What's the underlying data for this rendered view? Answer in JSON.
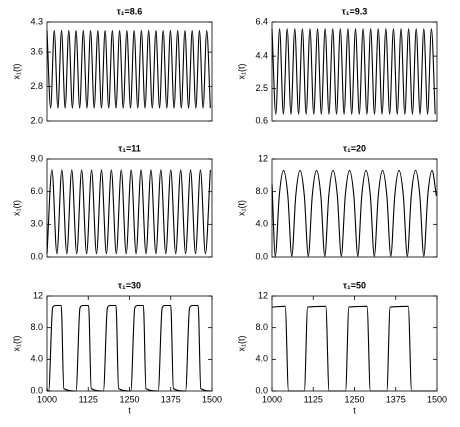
{
  "chart_data": [
    {
      "type": "line",
      "title": "τ₁=8.6",
      "ylabel": "x₁(t)",
      "xlim": [
        1000,
        1500
      ],
      "ylim": [
        2,
        4.3
      ],
      "yticks": [
        {
          "value": 2,
          "label": "2.0"
        },
        3.6,
        2.8,
        4.3
      ],
      "series": [
        {
          "color": "#000000",
          "x": [
            1000,
            1011,
            1022,
            1033,
            1044,
            1055,
            1066,
            1077,
            1088,
            1099,
            1110,
            1121,
            1132,
            1143,
            1154,
            1165,
            1176,
            1187,
            1198,
            1209,
            1220,
            1231,
            1242,
            1253,
            1264,
            1275,
            1286,
            1297,
            1308,
            1319,
            1330,
            1341,
            1352,
            1363,
            1374,
            1385,
            1396,
            1407,
            1418,
            1429,
            1440,
            1451,
            1462,
            1473,
            1484,
            1495
          ],
          "values": [
            4.1,
            2.3,
            4.1,
            2.3,
            4.1,
            2.3,
            4.1,
            2.3,
            4.1,
            2.3,
            4.1,
            2.3,
            4.1,
            2.3,
            4.1,
            2.3,
            4.1,
            2.3,
            4.1,
            2.3,
            4.1,
            2.3,
            4.1,
            2.3,
            4.1,
            2.3,
            4.1,
            2.3,
            4.1,
            2.3,
            4.1,
            2.3,
            4.1,
            2.3,
            4.1,
            2.3,
            4.1,
            2.3,
            4.1,
            2.3,
            4.1,
            2.3,
            4.1,
            2.3,
            4.1,
            2.3
          ]
        }
      ]
    },
    {
      "type": "line",
      "title": "τ₁=9.3",
      "ylabel": "x₁(t)",
      "xlim": [
        1000,
        1500
      ],
      "ylim": [
        0.6,
        6.4
      ],
      "yticks": [
        0.6,
        2.5,
        4.4,
        6.4
      ],
      "series": [
        {
          "color": "#000000",
          "x": [
            1000,
            1011.5,
            1023,
            1034.5,
            1046,
            1057.5,
            1069,
            1080.5,
            1092,
            1103.5,
            1115,
            1126.5,
            1138,
            1149.5,
            1161,
            1172.5,
            1184,
            1195.5,
            1207,
            1218.5,
            1230,
            1241.5,
            1253,
            1264.5,
            1276,
            1287.5,
            1299,
            1310.5,
            1322,
            1333.5,
            1345,
            1356.5,
            1368,
            1379.5,
            1391,
            1402.5,
            1414,
            1425.5,
            1437,
            1448.5,
            1460,
            1471.5,
            1483,
            1494.5
          ],
          "values": [
            6.0,
            1.0,
            6.0,
            1.0,
            6.0,
            1.0,
            6.0,
            1.0,
            6.0,
            1.0,
            6.0,
            1.0,
            6.0,
            1.0,
            6.0,
            1.0,
            6.0,
            1.0,
            6.0,
            1.0,
            6.0,
            1.0,
            6.0,
            1.0,
            6.0,
            1.0,
            6.0,
            1.0,
            6.0,
            1.0,
            6.0,
            1.0,
            6.0,
            1.0,
            6.0,
            1.0,
            6.0,
            1.0,
            6.0,
            1.0,
            6.0,
            1.0,
            6.0,
            1.0
          ]
        }
      ]
    },
    {
      "type": "line",
      "title": "τ₁=11",
      "ylabel": "x₁(t)",
      "xlim": [
        1000,
        1500
      ],
      "ylim": [
        0,
        9
      ],
      "yticks": [
        {
          "value": 0,
          "label": "0.0"
        },
        {
          "value": 3,
          "label": "3.0"
        },
        {
          "value": 6,
          "label": "6.0"
        },
        {
          "value": 9,
          "label": "9.0"
        }
      ],
      "series": [
        {
          "color": "#000000",
          "x": [
            1000,
            1015,
            1030,
            1045,
            1060,
            1075,
            1090,
            1105,
            1120,
            1135,
            1150,
            1165,
            1180,
            1195,
            1210,
            1225,
            1240,
            1255,
            1270,
            1285,
            1300,
            1315,
            1330,
            1345,
            1360,
            1375,
            1390,
            1405,
            1420,
            1435,
            1450,
            1465,
            1480,
            1495
          ],
          "values": [
            0.3,
            8.0,
            0.3,
            8.0,
            0.3,
            8.0,
            0.3,
            8.0,
            0.3,
            8.0,
            0.3,
            8.0,
            0.3,
            8.0,
            0.3,
            8.0,
            0.3,
            8.0,
            0.3,
            8.0,
            0.3,
            8.0,
            0.3,
            8.0,
            0.3,
            8.0,
            0.3,
            8.0,
            0.3,
            8.0,
            0.3,
            8.0,
            0.3,
            8.0
          ]
        }
      ]
    },
    {
      "type": "line",
      "title": "τ₁=20",
      "ylabel": "x₁(t)",
      "xlim": [
        1000,
        1500
      ],
      "ylim": [
        0,
        12
      ],
      "yticks": [
        {
          "value": 0,
          "label": "0.0"
        },
        {
          "value": 4,
          "label": "4.0"
        },
        {
          "value": 8,
          "label": "8.0"
        },
        12
      ],
      "series": [
        {
          "color": "#000000",
          "x": [
            1000,
            1010,
            1022,
            1035,
            1048,
            1060,
            1072,
            1085,
            1098,
            1110,
            1122,
            1135,
            1148,
            1160,
            1172,
            1185,
            1198,
            1210,
            1222,
            1235,
            1248,
            1260,
            1272,
            1285,
            1298,
            1310,
            1322,
            1335,
            1348,
            1360,
            1372,
            1385,
            1398,
            1410,
            1422,
            1435,
            1448,
            1460,
            1472,
            1485,
            1498
          ],
          "values": [
            9.0,
            0.1,
            7.5,
            10.6,
            7.5,
            0.1,
            7.5,
            10.6,
            7.5,
            0.1,
            7.5,
            10.6,
            7.5,
            0.1,
            7.5,
            10.6,
            7.5,
            0.1,
            7.5,
            10.6,
            7.5,
            0.1,
            7.5,
            10.6,
            7.5,
            0.1,
            7.5,
            10.6,
            7.5,
            0.1,
            7.5,
            10.6,
            7.5,
            0.1,
            7.5,
            10.6,
            7.5,
            0.1,
            7.5,
            10.6,
            7.5
          ]
        }
      ]
    },
    {
      "type": "line",
      "title": "τ₁=30",
      "ylabel": "x₁(t)",
      "xlabel": "t",
      "xlim": [
        1000,
        1500
      ],
      "ylim": [
        0,
        12
      ],
      "xticks": [
        1000,
        1125,
        1250,
        1375,
        1500
      ],
      "yticks": [
        {
          "value": 0,
          "label": "0.0"
        },
        {
          "value": 4,
          "label": "4.0"
        },
        {
          "value": 8,
          "label": "8.0"
        },
        12
      ],
      "series": [
        {
          "color": "#000000",
          "x": [
            1000,
            1005,
            1017,
            1025,
            1043,
            1051,
            1088,
            1100,
            1108,
            1126,
            1134,
            1171,
            1183,
            1191,
            1209,
            1217,
            1254,
            1266,
            1274,
            1292,
            1300,
            1337,
            1349,
            1357,
            1375,
            1383,
            1420,
            1432,
            1440,
            1458,
            1466,
            1500
          ],
          "values": [
            0.2,
            0.0,
            10.5,
            10.8,
            10.8,
            0.3,
            0.0,
            10.5,
            10.8,
            10.8,
            0.3,
            0.0,
            10.5,
            10.8,
            10.8,
            0.3,
            0.0,
            10.5,
            10.8,
            10.8,
            0.3,
            0.0,
            10.5,
            10.8,
            10.8,
            0.3,
            0.0,
            10.5,
            10.8,
            10.8,
            0.3,
            0.0
          ]
        }
      ]
    },
    {
      "type": "line",
      "title": "τ₁=50",
      "ylabel": "x₁(t)",
      "xlabel": "t",
      "xlim": [
        1000,
        1500
      ],
      "ylim": [
        0,
        12
      ],
      "xticks": [
        1000,
        1125,
        1250,
        1375,
        1500
      ],
      "yticks": [
        {
          "value": 0,
          "label": "0.0"
        },
        {
          "value": 4,
          "label": "4.0"
        },
        {
          "value": 8,
          "label": "8.0"
        },
        12
      ],
      "series": [
        {
          "color": "#000000",
          "x": [
            1000,
            1040,
            1050,
            1098,
            1108,
            1163,
            1173,
            1223,
            1233,
            1288,
            1298,
            1348,
            1358,
            1413,
            1423,
            1500
          ],
          "values": [
            10.6,
            10.7,
            0.0,
            0.0,
            10.6,
            10.7,
            0.0,
            0.0,
            10.6,
            10.7,
            0.0,
            0.0,
            10.6,
            10.7,
            0.0,
            0.0
          ]
        }
      ]
    }
  ]
}
